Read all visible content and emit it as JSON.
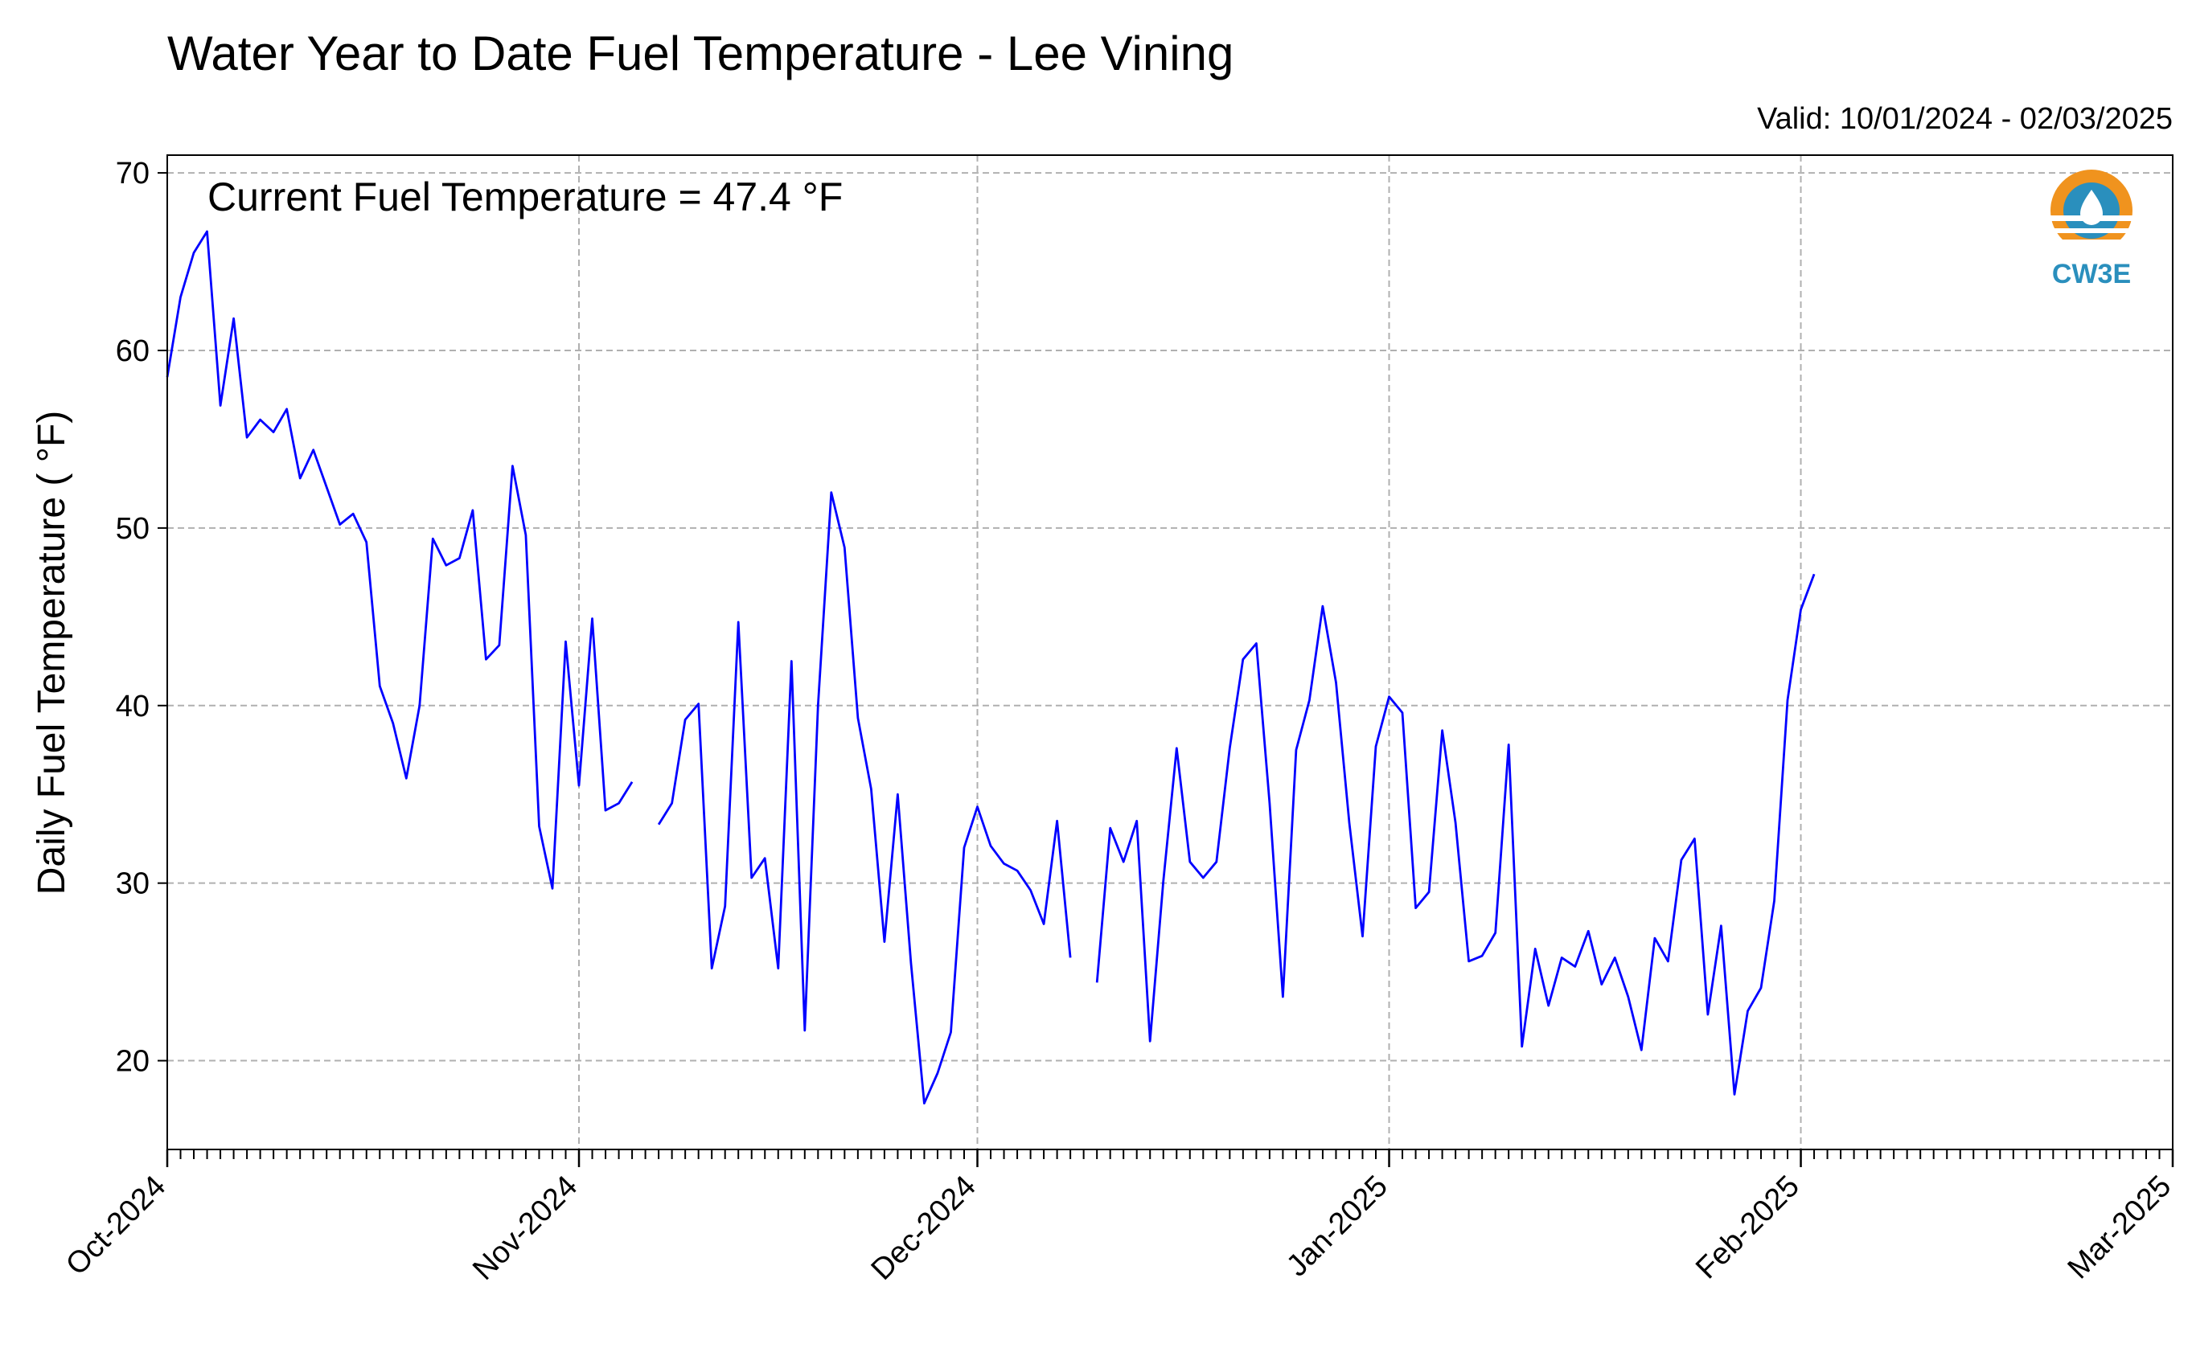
{
  "title": "Water Year to Date Fuel Temperature - Lee Vining",
  "valid_text": "Valid: 10/01/2024 - 02/03/2025",
  "annotation": "Current Fuel Temperature = 47.4  °F",
  "logo": {
    "text": "CW3E",
    "colors": {
      "sun": "#f0931e",
      "water": "#2a8fbd"
    }
  },
  "colors": {
    "line": "#0000ff",
    "grid": "#b0b0b0"
  },
  "chart_data": {
    "type": "line",
    "title": "Water Year to Date Fuel Temperature - Lee Vining",
    "ylabel": "Daily Fuel Temperature ( °F)",
    "xlabel": "",
    "x_start": "2024-10-01",
    "x_range": [
      "2024-10-01",
      "2025-03-01"
    ],
    "ylim": [
      15,
      71
    ],
    "yticks": [
      20,
      30,
      40,
      50,
      60,
      70
    ],
    "xtick_labels": [
      "Oct-2024",
      "Nov-2024",
      "Dec-2024",
      "Jan-2025",
      "Feb-2025",
      "Mar-2025"
    ],
    "grid": true,
    "series": [
      {
        "values": [
          58.5,
          63.0,
          65.5,
          66.7,
          56.9,
          61.8,
          55.1,
          56.1,
          55.4,
          56.7,
          52.8,
          54.4,
          52.3,
          50.2,
          50.8,
          49.2,
          41.1,
          39.0,
          35.9,
          40.0,
          49.4,
          47.9,
          48.3,
          51.0,
          42.6,
          43.4,
          53.5,
          49.6,
          33.2,
          29.7,
          43.6,
          35.5,
          44.9,
          34.1,
          34.5,
          35.7,
          null,
          33.3,
          34.5,
          39.2,
          40.1,
          25.2,
          28.7,
          44.7,
          30.3,
          31.4,
          25.2,
          42.5,
          21.7,
          40.0,
          52.0,
          48.9,
          39.3,
          35.3,
          26.7,
          35.0,
          25.5,
          17.6,
          19.3,
          21.6,
          32.0,
          34.3,
          32.1,
          31.1,
          30.7,
          29.6,
          27.7,
          33.5,
          25.8,
          null,
          24.4,
          33.1,
          31.2,
          33.5,
          21.1,
          30.1,
          37.6,
          31.2,
          30.3,
          31.2,
          37.6,
          42.6,
          43.5,
          34.5,
          23.6,
          37.5,
          40.3,
          45.6,
          41.3,
          33.4,
          27.0,
          37.7,
          40.5,
          39.6,
          28.6,
          29.5,
          38.6,
          33.4,
          25.6,
          25.9,
          27.2,
          37.8,
          20.8,
          26.3,
          23.1,
          25.8,
          25.3,
          27.3,
          24.3,
          25.8,
          23.6,
          20.6,
          26.9,
          25.6,
          31.3,
          32.5,
          22.6,
          27.6,
          18.1,
          22.8,
          24.1,
          29.0,
          40.3,
          45.4,
          47.4
        ]
      }
    ]
  }
}
